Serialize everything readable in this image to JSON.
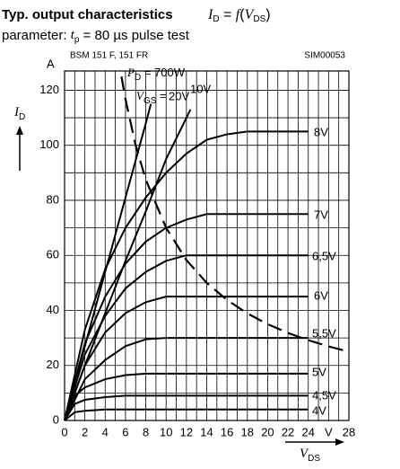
{
  "chart_data": {
    "type": "line",
    "title": "Typ. output characteristics",
    "title_formula": [
      "I",
      "D",
      " = ",
      "f",
      "(",
      "V",
      "DS",
      ")"
    ],
    "subtitle": [
      "parameter: ",
      "t",
      "p",
      " = 80 µs pulse test"
    ],
    "device": "BSM 151 F, 151 FR",
    "code": "SIM00053",
    "y_unit": "A",
    "y_label": [
      "I",
      "D"
    ],
    "x_label": [
      "V",
      "DS"
    ],
    "annotations": [
      {
        "parts": [
          "P",
          "D",
          " = 700W"
        ]
      },
      {
        "parts": [
          "V",
          "GS",
          " ="
        ]
      }
    ],
    "xlim": [
      0,
      28
    ],
    "ylim": [
      0,
      127
    ],
    "xticks": [
      0,
      2,
      4,
      6,
      8,
      10,
      12,
      14,
      16,
      18,
      20,
      22,
      24,
      {
        "value": 26,
        "label": "V"
      },
      28
    ],
    "yticks": [
      0,
      20,
      40,
      60,
      80,
      100,
      120
    ],
    "xgrid": [
      1,
      2,
      3,
      4,
      5,
      6,
      7,
      8,
      9,
      10,
      11,
      12,
      13,
      14,
      15,
      16,
      17,
      18,
      19,
      20,
      21,
      22,
      23,
      24,
      25,
      26,
      27
    ],
    "ygrid": [
      10,
      20,
      30,
      40,
      50,
      60,
      70,
      80,
      90,
      100,
      110,
      120
    ],
    "grid": true,
    "series": [
      {
        "name": "8V",
        "color": "#000000",
        "x": [
          0,
          2,
          4,
          6,
          8,
          10,
          12,
          14,
          16,
          18,
          24
        ],
        "values": [
          0,
          33,
          55,
          70,
          81,
          90,
          97,
          102,
          104,
          105,
          105
        ]
      },
      {
        "name": "7V",
        "color": "#000000",
        "x": [
          0,
          2,
          4,
          6,
          8,
          10,
          12,
          14,
          16,
          24
        ],
        "values": [
          0,
          28,
          45,
          57,
          65,
          70,
          73,
          75,
          75,
          75
        ]
      },
      {
        "name": "6,5V",
        "color": "#000000",
        "x": [
          0,
          2,
          4,
          6,
          8,
          10,
          12,
          14,
          24
        ],
        "values": [
          0,
          24,
          38,
          48,
          54,
          58,
          60,
          60,
          60
        ]
      },
      {
        "name": "6V",
        "color": "#000000",
        "x": [
          0,
          2,
          4,
          6,
          8,
          10,
          12,
          24
        ],
        "values": [
          0,
          20,
          32,
          39,
          43,
          45,
          45,
          45
        ]
      },
      {
        "name": "5,5V",
        "color": "#000000",
        "x": [
          0,
          2,
          4,
          6,
          8,
          10,
          24
        ],
        "values": [
          0,
          15,
          22,
          27,
          29.5,
          30,
          30
        ]
      },
      {
        "name": "5V",
        "color": "#000000",
        "x": [
          0,
          1,
          2,
          4,
          6,
          8,
          24
        ],
        "values": [
          0,
          9,
          12,
          15,
          16.5,
          17,
          17
        ]
      },
      {
        "name": "4,5V",
        "color": "#000000",
        "x": [
          0,
          1,
          2,
          4,
          6,
          24
        ],
        "values": [
          0,
          6,
          7.5,
          8.5,
          9,
          9
        ]
      },
      {
        "name": "4V",
        "color": "#000000",
        "x": [
          0,
          1,
          2,
          4,
          24
        ],
        "values": [
          0,
          3,
          3.5,
          4,
          4
        ]
      },
      {
        "name": "10V",
        "color": "#000000",
        "x": [
          0,
          2,
          4,
          6,
          8,
          10,
          12.4
        ],
        "values": [
          0,
          20,
          39,
          58,
          76,
          95,
          113
        ]
      },
      {
        "name": "20V",
        "color": "#000000",
        "x": [
          0,
          2,
          4,
          6,
          8,
          8.5
        ],
        "values": [
          0,
          27,
          54,
          81,
          108,
          115
        ]
      },
      {
        "color": "#000000",
        "dashed": true,
        "x": [
          5.6,
          6,
          7,
          8,
          10,
          12,
          14,
          16,
          18,
          20,
          22,
          24,
          26,
          28
        ],
        "values": [
          125,
          116.7,
          100,
          87.5,
          70,
          58.3,
          50,
          43.8,
          38.9,
          35,
          31.8,
          29.2,
          26.9,
          25
        ]
      }
    ]
  }
}
